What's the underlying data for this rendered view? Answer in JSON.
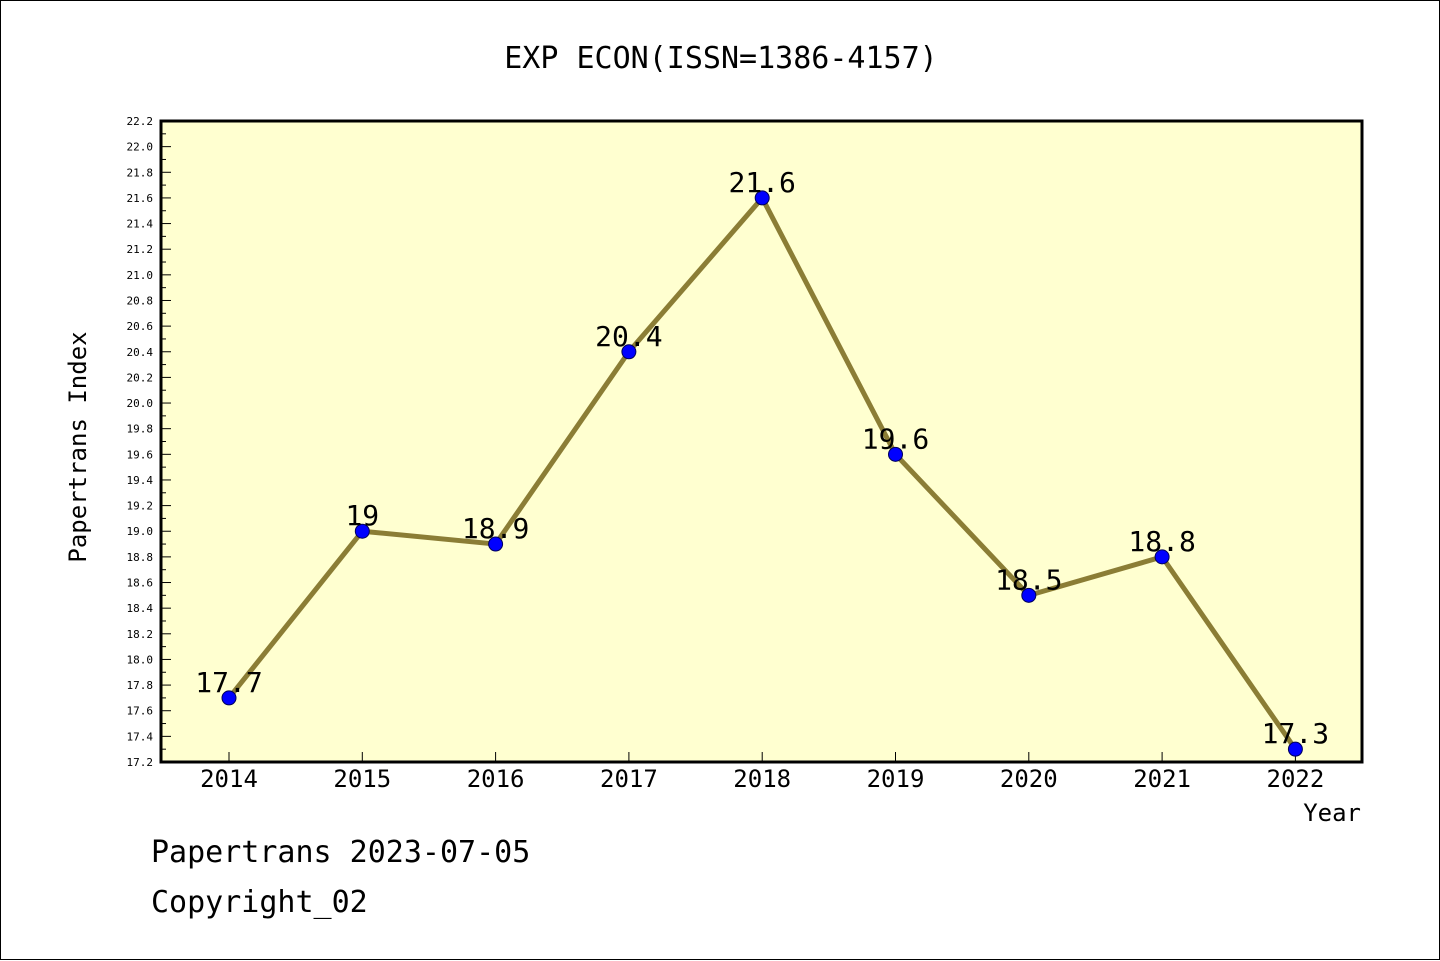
{
  "chart_data": {
    "type": "line",
    "title": "EXP ECON(ISSN=1386-4157)",
    "xlabel": "Year",
    "ylabel": "Papertrans Index",
    "categories": [
      "2014",
      "2015",
      "2016",
      "2017",
      "2018",
      "2019",
      "2020",
      "2021",
      "2022"
    ],
    "values": [
      17.7,
      19,
      18.9,
      20.4,
      21.6,
      19.6,
      18.5,
      18.8,
      17.3
    ],
    "data_labels": [
      "17.7",
      "19",
      "18.9",
      "20.4",
      "21.6",
      "19.6",
      "18.5",
      "18.8",
      "17.3"
    ],
    "ylim": [
      17.2,
      22.2
    ],
    "y_ticks": [
      "17.2",
      "17.4",
      "17.6",
      "17.8",
      "18.0",
      "18.2",
      "18.4",
      "18.6",
      "18.8",
      "19.0",
      "19.2",
      "19.4",
      "19.6",
      "19.8",
      "20.0",
      "20.2",
      "20.4",
      "20.6",
      "20.8",
      "21.0",
      "21.2",
      "21.4",
      "21.6",
      "21.8",
      "22.0",
      "22.2"
    ],
    "grid": false,
    "colors": {
      "plot_background": "#ffffd0",
      "line": "#8b7d35",
      "marker": "#0000ff"
    }
  },
  "footer": {
    "line1": "Papertrans 2023-07-05",
    "line2": "Copyright_02"
  }
}
